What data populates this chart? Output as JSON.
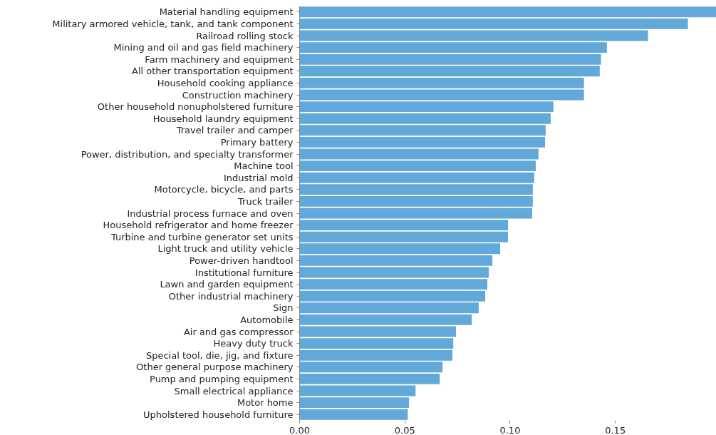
{
  "chart_data": {
    "type": "bar",
    "orientation": "horizontal",
    "color": "#62a8d8",
    "categories": [
      "Material handling equipment",
      "Military armored vehicle, tank, and tank component",
      "Railroad rolling stock",
      "Mining and oil and gas field machinery",
      "Farm machinery and equipment",
      "All other transportation equipment",
      "Household cooking appliance",
      "Construction machinery",
      "Other household nonupholstered furniture",
      "Household laundry equipment",
      "Travel trailer and camper",
      "Primary battery",
      "Power, distribution, and specialty transformer",
      "Machine tool",
      "Industrial mold",
      "Motorcycle, bicycle, and parts",
      "Truck trailer",
      "Industrial process furnace and oven",
      "Household refrigerator and home freezer",
      "Turbine and turbine generator set units",
      "Light truck and utility vehicle",
      "Power-driven handtool",
      "Institutional furniture",
      "Lawn and garden equipment",
      "Other industrial machinery",
      "Sign",
      "Automobile",
      "Air and gas compressor",
      "Heavy duty truck",
      "Special tool, die, jig, and fixture",
      "Other general purpose machinery",
      "Pump and pumping equipment",
      "Small electrical appliance",
      "Motor home",
      "Upholstered household furniture"
    ],
    "values": [
      0.198,
      0.1845,
      0.1655,
      0.146,
      0.1432,
      0.1426,
      0.1351,
      0.1351,
      0.1206,
      0.1193,
      0.1169,
      0.1166,
      0.1135,
      0.1122,
      0.1115,
      0.1108,
      0.1108,
      0.1105,
      0.099,
      0.099,
      0.0953,
      0.0916,
      0.0899,
      0.0892,
      0.0882,
      0.0851,
      0.0818,
      0.0743,
      0.073,
      0.0726,
      0.0679,
      0.0666,
      0.0551,
      0.052,
      0.0514
    ],
    "xlim": [
      0,
      0.198
    ],
    "xticks": [
      {
        "value": 0,
        "label": "0.00"
      },
      {
        "value": 0.05,
        "label": "0.05"
      },
      {
        "value": 0.1,
        "label": "0.10"
      },
      {
        "value": 0.15,
        "label": "0.15"
      }
    ],
    "grid": false
  }
}
